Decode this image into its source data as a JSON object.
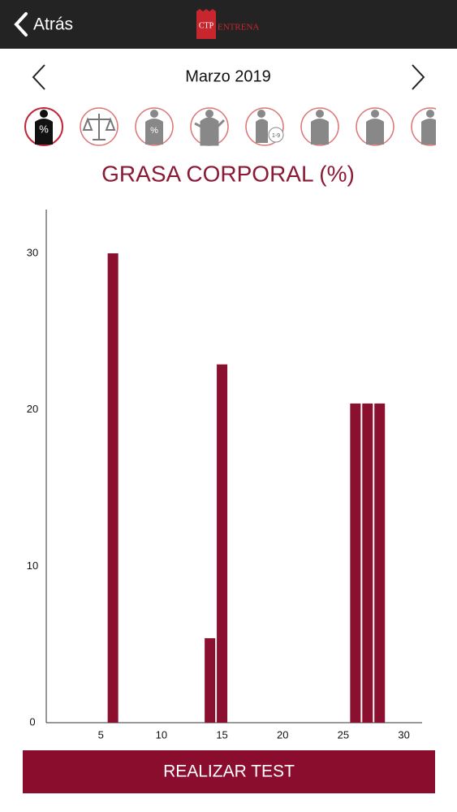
{
  "header": {
    "back": "Atrás",
    "logo_mark": "CTP",
    "logo_text": "ENTRENA"
  },
  "month": "Marzo 2019",
  "icon_labels": [
    "%",
    "%",
    "1-9"
  ],
  "chart_data": {
    "type": "bar",
    "title": "GRASA CORPORAL (%)",
    "x": [
      6,
      14,
      15,
      26,
      27,
      28
    ],
    "values": [
      30,
      5.4,
      22.9,
      20.4,
      20.4,
      20.4
    ],
    "color": "#8b1030",
    "xlim": [
      0.5,
      31.5
    ],
    "xticks": [
      5,
      10,
      15,
      20,
      25,
      30
    ],
    "ylim": [
      0,
      32.8
    ],
    "yticks": [
      0,
      10,
      20,
      30
    ]
  },
  "button": "REALIZAR TEST"
}
